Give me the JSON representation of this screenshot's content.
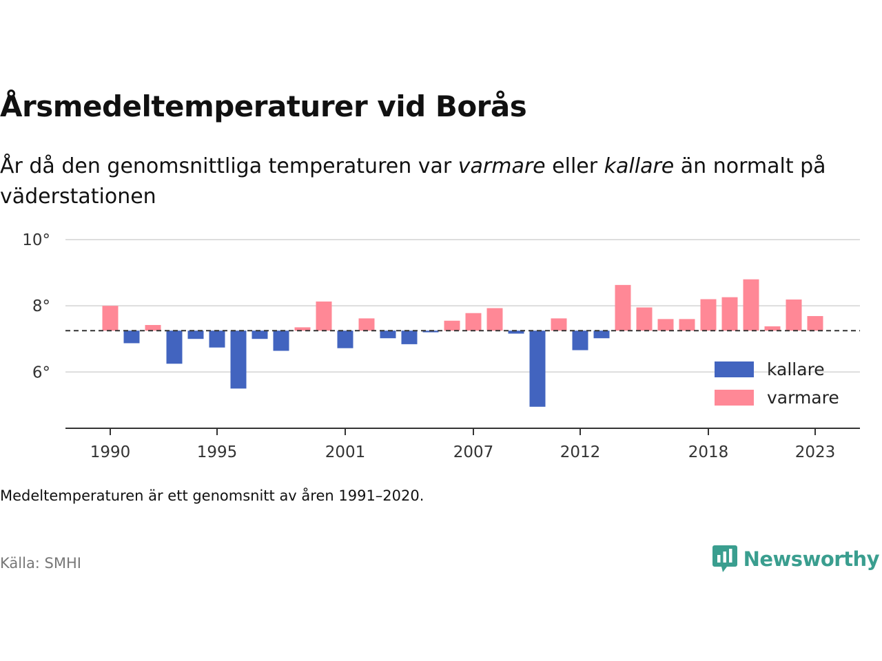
{
  "title": "Årsmedeltemperaturer vid Borås",
  "subtitle": {
    "part1": "År då den genomsnittliga temperaturen var ",
    "warm_word": "varmare",
    "part2": " eller ",
    "cold_word": "kallare",
    "part3": " än normalt på väderstationen"
  },
  "footnote": "Medeltemperaturen är ett genomsnitt av åren 1991–2020.",
  "source": "Källa: SMHI",
  "brand": {
    "name": "Newsworthy",
    "color": "#3a9e8f",
    "icon": "newsworthy-logo-icon"
  },
  "colors": {
    "warmer": "#ff8896",
    "colder": "#4264bf",
    "grid": "#dddddd",
    "baseline": "#333333",
    "axis": "#333333"
  },
  "chart_data": {
    "type": "bar",
    "title": "",
    "xlabel": "",
    "ylabel": "",
    "baseline_value": 7.25,
    "ylim": [
      4.3,
      10
    ],
    "y_ticks": [
      {
        "value": 6,
        "label": "6°"
      },
      {
        "value": 8,
        "label": "8°"
      },
      {
        "value": 10,
        "label": "10°"
      }
    ],
    "x_ticks": [
      {
        "value": 1990,
        "label": "1990"
      },
      {
        "value": 1995,
        "label": "1995"
      },
      {
        "value": 2001,
        "label": "2001"
      },
      {
        "value": 2007,
        "label": "2007"
      },
      {
        "value": 2012,
        "label": "2012"
      },
      {
        "value": 2018,
        "label": "2018"
      },
      {
        "value": 2023,
        "label": "2023"
      }
    ],
    "grid": true,
    "legend_position": "bottom-right",
    "legend": [
      {
        "key": "colder",
        "label": "kallare"
      },
      {
        "key": "warmer",
        "label": "varmare"
      }
    ],
    "series": [
      {
        "year": 1990,
        "value": 8.0
      },
      {
        "year": 1991,
        "value": 6.87
      },
      {
        "year": 1992,
        "value": 7.42
      },
      {
        "year": 1993,
        "value": 6.25
      },
      {
        "year": 1994,
        "value": 7.0
      },
      {
        "year": 1995,
        "value": 6.74
      },
      {
        "year": 1996,
        "value": 5.5
      },
      {
        "year": 1997,
        "value": 7.0
      },
      {
        "year": 1998,
        "value": 6.64
      },
      {
        "year": 1999,
        "value": 7.35
      },
      {
        "year": 2000,
        "value": 8.13
      },
      {
        "year": 2001,
        "value": 6.72
      },
      {
        "year": 2002,
        "value": 7.62
      },
      {
        "year": 2003,
        "value": 7.02
      },
      {
        "year": 2004,
        "value": 6.84
      },
      {
        "year": 2005,
        "value": 7.2
      },
      {
        "year": 2006,
        "value": 7.55
      },
      {
        "year": 2007,
        "value": 7.78
      },
      {
        "year": 2008,
        "value": 7.93
      },
      {
        "year": 2009,
        "value": 7.16
      },
      {
        "year": 2010,
        "value": 4.95
      },
      {
        "year": 2011,
        "value": 7.62
      },
      {
        "year": 2012,
        "value": 6.66
      },
      {
        "year": 2013,
        "value": 7.02
      },
      {
        "year": 2014,
        "value": 8.63
      },
      {
        "year": 2015,
        "value": 7.95
      },
      {
        "year": 2016,
        "value": 7.6
      },
      {
        "year": 2017,
        "value": 7.6
      },
      {
        "year": 2018,
        "value": 8.2
      },
      {
        "year": 2019,
        "value": 8.26
      },
      {
        "year": 2020,
        "value": 8.8
      },
      {
        "year": 2021,
        "value": 7.38
      },
      {
        "year": 2022,
        "value": 8.19
      },
      {
        "year": 2023,
        "value": 7.69
      }
    ]
  }
}
